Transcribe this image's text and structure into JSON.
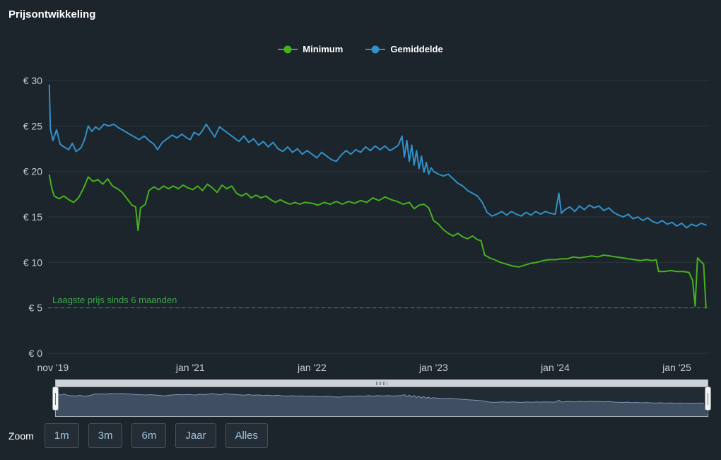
{
  "title": "Prijsontwikkeling",
  "colors": {
    "background": "#1c242c",
    "grid": "#2b333b",
    "axis_label": "#c9ccce",
    "minimum": "#46b11e",
    "gemiddelde": "#3191c8",
    "annotation_text": "#3fa64c",
    "annotation_line": "#2e8d3c",
    "navigator_line": "#7b96b4",
    "navigator_fill": "rgba(108,135,167,0.4)"
  },
  "legend": {
    "items": [
      {
        "label": "Minimum",
        "color": "#46b11e"
      },
      {
        "label": "Gemiddelde",
        "color": "#3191c8"
      }
    ]
  },
  "chart_data": {
    "type": "line",
    "title": "Prijsontwikkeling",
    "xlabel": "",
    "ylabel": "",
    "x_unit": "decimal_year",
    "y_unit": "EUR",
    "ylim": [
      0,
      30
    ],
    "xlim": [
      2019.83,
      2025.27
    ],
    "grid": true,
    "legend_position": "top-center",
    "yticks": [
      {
        "v": 30,
        "label": "€ 30"
      },
      {
        "v": 25,
        "label": "€ 25"
      },
      {
        "v": 20,
        "label": "€ 20"
      },
      {
        "v": 15,
        "label": "€ 15"
      },
      {
        "v": 10,
        "label": "€ 10"
      },
      {
        "v": 5,
        "label": "€ 5"
      },
      {
        "v": 0,
        "label": "€ 0"
      }
    ],
    "xticks": [
      {
        "x": 2019.87,
        "label": "nov '19"
      },
      {
        "x": 2021.0,
        "label": "jan '21"
      },
      {
        "x": 2022.0,
        "label": "jan '22"
      },
      {
        "x": 2023.0,
        "label": "jan '23"
      },
      {
        "x": 2024.0,
        "label": "jan '24"
      },
      {
        "x": 2025.0,
        "label": "jan '25"
      }
    ],
    "annotation": {
      "label": "Laagste prijs sinds 6 maanden",
      "value": 5,
      "style": "dashed"
    },
    "series": [
      {
        "name": "Minimum",
        "color": "#46b11e",
        "points": [
          [
            2019.84,
            19.6
          ],
          [
            2019.86,
            18.2
          ],
          [
            2019.88,
            17.3
          ],
          [
            2019.92,
            17.0
          ],
          [
            2019.96,
            17.3
          ],
          [
            2020.0,
            16.9
          ],
          [
            2020.04,
            16.6
          ],
          [
            2020.08,
            17.1
          ],
          [
            2020.12,
            18.1
          ],
          [
            2020.16,
            19.4
          ],
          [
            2020.2,
            18.9
          ],
          [
            2020.24,
            19.1
          ],
          [
            2020.28,
            18.6
          ],
          [
            2020.32,
            19.2
          ],
          [
            2020.36,
            18.4
          ],
          [
            2020.4,
            18.1
          ],
          [
            2020.44,
            17.7
          ],
          [
            2020.48,
            17.0
          ],
          [
            2020.52,
            16.3
          ],
          [
            2020.55,
            16.1
          ],
          [
            2020.57,
            13.5
          ],
          [
            2020.59,
            16.0
          ],
          [
            2020.63,
            16.4
          ],
          [
            2020.66,
            17.9
          ],
          [
            2020.7,
            18.3
          ],
          [
            2020.74,
            18.0
          ],
          [
            2020.78,
            18.4
          ],
          [
            2020.82,
            18.1
          ],
          [
            2020.86,
            18.4
          ],
          [
            2020.9,
            18.1
          ],
          [
            2020.94,
            18.5
          ],
          [
            2020.98,
            18.2
          ],
          [
            2021.02,
            18.0
          ],
          [
            2021.06,
            18.4
          ],
          [
            2021.1,
            17.9
          ],
          [
            2021.14,
            18.6
          ],
          [
            2021.18,
            18.2
          ],
          [
            2021.22,
            17.7
          ],
          [
            2021.26,
            18.5
          ],
          [
            2021.3,
            18.1
          ],
          [
            2021.34,
            18.4
          ],
          [
            2021.38,
            17.6
          ],
          [
            2021.42,
            17.3
          ],
          [
            2021.46,
            17.6
          ],
          [
            2021.5,
            17.1
          ],
          [
            2021.54,
            17.4
          ],
          [
            2021.58,
            17.1
          ],
          [
            2021.62,
            17.3
          ],
          [
            2021.66,
            16.9
          ],
          [
            2021.7,
            16.6
          ],
          [
            2021.74,
            16.9
          ],
          [
            2021.78,
            16.6
          ],
          [
            2021.82,
            16.4
          ],
          [
            2021.86,
            16.6
          ],
          [
            2021.9,
            16.4
          ],
          [
            2021.94,
            16.6
          ],
          [
            2022.0,
            16.5
          ],
          [
            2022.05,
            16.3
          ],
          [
            2022.1,
            16.6
          ],
          [
            2022.15,
            16.4
          ],
          [
            2022.2,
            16.7
          ],
          [
            2022.25,
            16.4
          ],
          [
            2022.3,
            16.7
          ],
          [
            2022.35,
            16.5
          ],
          [
            2022.4,
            16.8
          ],
          [
            2022.45,
            16.6
          ],
          [
            2022.5,
            17.1
          ],
          [
            2022.55,
            16.8
          ],
          [
            2022.6,
            17.2
          ],
          [
            2022.65,
            16.9
          ],
          [
            2022.7,
            16.7
          ],
          [
            2022.75,
            16.4
          ],
          [
            2022.8,
            16.6
          ],
          [
            2022.84,
            15.9
          ],
          [
            2022.88,
            16.3
          ],
          [
            2022.92,
            16.4
          ],
          [
            2022.96,
            16.0
          ],
          [
            2023.0,
            14.6
          ],
          [
            2023.04,
            14.2
          ],
          [
            2023.08,
            13.6
          ],
          [
            2023.12,
            13.2
          ],
          [
            2023.16,
            12.9
          ],
          [
            2023.2,
            13.2
          ],
          [
            2023.24,
            12.8
          ],
          [
            2023.28,
            12.6
          ],
          [
            2023.32,
            12.9
          ],
          [
            2023.36,
            12.5
          ],
          [
            2023.39,
            12.4
          ],
          [
            2023.42,
            10.8
          ],
          [
            2023.46,
            10.5
          ],
          [
            2023.5,
            10.3
          ],
          [
            2023.55,
            10.0
          ],
          [
            2023.6,
            9.8
          ],
          [
            2023.65,
            9.6
          ],
          [
            2023.7,
            9.5
          ],
          [
            2023.75,
            9.7
          ],
          [
            2023.8,
            9.9
          ],
          [
            2023.85,
            10.0
          ],
          [
            2023.9,
            10.2
          ],
          [
            2023.95,
            10.3
          ],
          [
            2024.0,
            10.3
          ],
          [
            2024.05,
            10.4
          ],
          [
            2024.1,
            10.4
          ],
          [
            2024.15,
            10.6
          ],
          [
            2024.2,
            10.5
          ],
          [
            2024.25,
            10.6
          ],
          [
            2024.3,
            10.7
          ],
          [
            2024.35,
            10.6
          ],
          [
            2024.4,
            10.8
          ],
          [
            2024.45,
            10.7
          ],
          [
            2024.5,
            10.6
          ],
          [
            2024.55,
            10.5
          ],
          [
            2024.6,
            10.4
          ],
          [
            2024.65,
            10.3
          ],
          [
            2024.7,
            10.2
          ],
          [
            2024.75,
            10.3
          ],
          [
            2024.8,
            10.2
          ],
          [
            2024.83,
            10.3
          ],
          [
            2024.85,
            9.0
          ],
          [
            2024.9,
            9.0
          ],
          [
            2024.95,
            9.1
          ],
          [
            2025.0,
            9.0
          ],
          [
            2025.05,
            9.0
          ],
          [
            2025.1,
            8.9
          ],
          [
            2025.13,
            8.0
          ],
          [
            2025.15,
            5.2
          ],
          [
            2025.17,
            10.5
          ],
          [
            2025.19,
            10.2
          ],
          [
            2025.22,
            9.8
          ],
          [
            2025.24,
            5.0
          ]
        ]
      },
      {
        "name": "Gemiddelde",
        "color": "#3191c8",
        "points": [
          [
            2019.84,
            29.5
          ],
          [
            2019.85,
            24.6
          ],
          [
            2019.87,
            23.4
          ],
          [
            2019.9,
            24.6
          ],
          [
            2019.93,
            23.0
          ],
          [
            2019.96,
            22.7
          ],
          [
            2020.0,
            22.4
          ],
          [
            2020.03,
            23.1
          ],
          [
            2020.06,
            22.2
          ],
          [
            2020.1,
            22.6
          ],
          [
            2020.13,
            23.5
          ],
          [
            2020.16,
            25.0
          ],
          [
            2020.19,
            24.4
          ],
          [
            2020.22,
            24.9
          ],
          [
            2020.25,
            24.6
          ],
          [
            2020.29,
            25.2
          ],
          [
            2020.33,
            25.0
          ],
          [
            2020.37,
            25.2
          ],
          [
            2020.41,
            24.8
          ],
          [
            2020.45,
            24.5
          ],
          [
            2020.5,
            24.1
          ],
          [
            2020.54,
            23.8
          ],
          [
            2020.58,
            23.5
          ],
          [
            2020.62,
            23.9
          ],
          [
            2020.66,
            23.4
          ],
          [
            2020.7,
            23.0
          ],
          [
            2020.73,
            22.4
          ],
          [
            2020.77,
            23.2
          ],
          [
            2020.81,
            23.6
          ],
          [
            2020.85,
            24.0
          ],
          [
            2020.89,
            23.7
          ],
          [
            2020.93,
            24.1
          ],
          [
            2020.97,
            23.7
          ],
          [
            2021.0,
            23.5
          ],
          [
            2021.03,
            24.3
          ],
          [
            2021.07,
            24.0
          ],
          [
            2021.1,
            24.5
          ],
          [
            2021.13,
            25.2
          ],
          [
            2021.16,
            24.6
          ],
          [
            2021.2,
            23.8
          ],
          [
            2021.24,
            24.9
          ],
          [
            2021.28,
            24.5
          ],
          [
            2021.32,
            24.1
          ],
          [
            2021.36,
            23.7
          ],
          [
            2021.4,
            23.3
          ],
          [
            2021.44,
            23.9
          ],
          [
            2021.48,
            23.2
          ],
          [
            2021.52,
            23.6
          ],
          [
            2021.56,
            22.9
          ],
          [
            2021.6,
            23.3
          ],
          [
            2021.64,
            22.7
          ],
          [
            2021.68,
            23.2
          ],
          [
            2021.72,
            22.5
          ],
          [
            2021.76,
            22.2
          ],
          [
            2021.8,
            22.7
          ],
          [
            2021.84,
            22.1
          ],
          [
            2021.88,
            22.5
          ],
          [
            2021.92,
            21.9
          ],
          [
            2021.96,
            22.3
          ],
          [
            2022.0,
            21.9
          ],
          [
            2022.04,
            21.5
          ],
          [
            2022.08,
            22.1
          ],
          [
            2022.12,
            21.7
          ],
          [
            2022.16,
            21.3
          ],
          [
            2022.2,
            21.1
          ],
          [
            2022.24,
            21.8
          ],
          [
            2022.28,
            22.3
          ],
          [
            2022.32,
            21.9
          ],
          [
            2022.36,
            22.4
          ],
          [
            2022.4,
            22.1
          ],
          [
            2022.44,
            22.7
          ],
          [
            2022.48,
            22.3
          ],
          [
            2022.52,
            22.8
          ],
          [
            2022.56,
            22.4
          ],
          [
            2022.6,
            22.8
          ],
          [
            2022.64,
            22.3
          ],
          [
            2022.68,
            22.6
          ],
          [
            2022.71,
            22.9
          ],
          [
            2022.74,
            23.9
          ],
          [
            2022.76,
            21.6
          ],
          [
            2022.78,
            23.4
          ],
          [
            2022.8,
            21.1
          ],
          [
            2022.82,
            22.9
          ],
          [
            2022.84,
            20.7
          ],
          [
            2022.86,
            22.3
          ],
          [
            2022.88,
            20.3
          ],
          [
            2022.9,
            21.7
          ],
          [
            2022.92,
            19.9
          ],
          [
            2022.94,
            21.0
          ],
          [
            2022.96,
            19.7
          ],
          [
            2022.98,
            20.4
          ],
          [
            2023.0,
            20.0
          ],
          [
            2023.04,
            19.7
          ],
          [
            2023.08,
            19.5
          ],
          [
            2023.12,
            19.7
          ],
          [
            2023.16,
            19.2
          ],
          [
            2023.2,
            18.7
          ],
          [
            2023.24,
            18.4
          ],
          [
            2023.28,
            17.9
          ],
          [
            2023.32,
            17.6
          ],
          [
            2023.36,
            17.3
          ],
          [
            2023.4,
            16.6
          ],
          [
            2023.44,
            15.5
          ],
          [
            2023.48,
            15.1
          ],
          [
            2023.52,
            15.3
          ],
          [
            2023.56,
            15.6
          ],
          [
            2023.6,
            15.2
          ],
          [
            2023.64,
            15.6
          ],
          [
            2023.68,
            15.3
          ],
          [
            2023.72,
            15.1
          ],
          [
            2023.76,
            15.5
          ],
          [
            2023.8,
            15.2
          ],
          [
            2023.84,
            15.6
          ],
          [
            2023.88,
            15.3
          ],
          [
            2023.92,
            15.6
          ],
          [
            2023.96,
            15.4
          ],
          [
            2024.0,
            15.3
          ],
          [
            2024.03,
            17.6
          ],
          [
            2024.05,
            15.4
          ],
          [
            2024.08,
            15.8
          ],
          [
            2024.12,
            16.1
          ],
          [
            2024.16,
            15.6
          ],
          [
            2024.2,
            16.2
          ],
          [
            2024.24,
            15.8
          ],
          [
            2024.28,
            16.3
          ],
          [
            2024.32,
            16.0
          ],
          [
            2024.36,
            16.2
          ],
          [
            2024.4,
            15.7
          ],
          [
            2024.44,
            16.0
          ],
          [
            2024.48,
            15.5
          ],
          [
            2024.52,
            15.2
          ],
          [
            2024.56,
            15.0
          ],
          [
            2024.6,
            15.3
          ],
          [
            2024.64,
            14.8
          ],
          [
            2024.68,
            15.0
          ],
          [
            2024.72,
            14.6
          ],
          [
            2024.76,
            14.9
          ],
          [
            2024.8,
            14.5
          ],
          [
            2024.84,
            14.3
          ],
          [
            2024.88,
            14.6
          ],
          [
            2024.92,
            14.2
          ],
          [
            2024.96,
            14.4
          ],
          [
            2025.0,
            14.0
          ],
          [
            2025.04,
            14.3
          ],
          [
            2025.08,
            13.8
          ],
          [
            2025.12,
            14.2
          ],
          [
            2025.16,
            14.0
          ],
          [
            2025.2,
            14.3
          ],
          [
            2025.24,
            14.1
          ]
        ]
      }
    ]
  },
  "zoom": {
    "label": "Zoom",
    "buttons": [
      "1m",
      "3m",
      "6m",
      "Jaar",
      "Alles"
    ]
  }
}
